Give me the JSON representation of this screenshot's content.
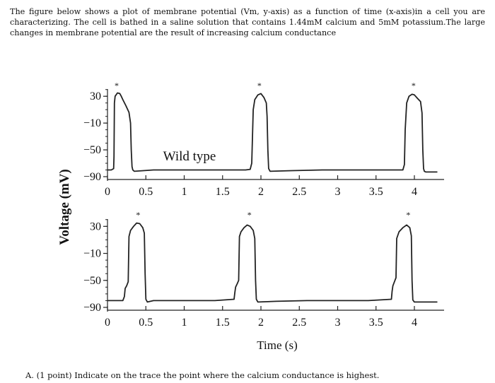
{
  "intro_text": "The figure below shows a plot of membrane potential (Vm, y-axis) as a function of time (x-axis)in a cell you are characterizing. The cell is bathed in a saline solution that contains 1.44mM calcium and 5mM potassium.The large changes in membrane potential are the result of increasing calcium conductance",
  "question_text": "A. (1 point) Indicate on the trace the point where the calcium conductance is highest.",
  "colors": {
    "trace": "#222222",
    "axis": "#222222",
    "text": "#111111"
  },
  "chart_data": [
    {
      "type": "line",
      "title": "",
      "annotation": "Wild type",
      "xlabel": "",
      "ylabel": "Voltage (mV)",
      "xlim": [
        0,
        4.3
      ],
      "ylim": [
        -90,
        45
      ],
      "x_ticks": [
        0,
        0.5,
        1,
        1.5,
        2,
        2.5,
        3,
        3.5,
        4
      ],
      "x_tick_labels": [
        "0",
        "0.5",
        "1",
        "1.5",
        "2",
        "2.5",
        "3",
        "3.5",
        "4"
      ],
      "y_ticks": [
        30,
        -10,
        -50,
        -90
      ],
      "y_tick_labels": [
        "30",
        "−10",
        "−50",
        "−90"
      ],
      "peak_marker": "*",
      "peak_markers": [
        {
          "x": 0.12,
          "y": 42
        },
        {
          "x": 1.98,
          "y": 42
        },
        {
          "x": 3.99,
          "y": 42
        }
      ],
      "series": [
        {
          "x": [
            0,
            0.05,
            0.08,
            0.085,
            0.09,
            0.1,
            0.13,
            0.16,
            0.18,
            0.2,
            0.24,
            0.28,
            0.3,
            0.31,
            0.32,
            0.33,
            0.35,
            0.6,
            1.0,
            1.4,
            1.8,
            1.86,
            1.88,
            1.9,
            1.92,
            1.96,
            2.0,
            2.04,
            2.07,
            2.08,
            2.09,
            2.1,
            2.12,
            2.4,
            2.8,
            3.2,
            3.6,
            3.85,
            3.87,
            3.88,
            3.9,
            3.93,
            3.97,
            4.0,
            4.04,
            4.08,
            4.1,
            4.11,
            4.12,
            4.13,
            4.15,
            4.3
          ],
          "y": [
            -80,
            -80,
            -78,
            -60,
            20,
            30,
            35,
            34,
            30,
            25,
            16,
            6,
            -10,
            -50,
            -75,
            -80,
            -82,
            -80,
            -80,
            -80,
            -80,
            -79,
            -70,
            10,
            25,
            32,
            34,
            28,
            20,
            0,
            -50,
            -78,
            -82,
            -81,
            -80,
            -80,
            -80,
            -80,
            -72,
            -20,
            20,
            30,
            33,
            32,
            27,
            22,
            5,
            -50,
            -78,
            -82,
            -83,
            -83
          ]
        }
      ]
    },
    {
      "type": "line",
      "title": "",
      "xlabel": "Time (s)",
      "ylabel": "Voltage (mV)",
      "xlim": [
        0,
        4.3
      ],
      "ylim": [
        -90,
        45
      ],
      "x_ticks": [
        0,
        0.5,
        1,
        1.5,
        2,
        2.5,
        3,
        3.5,
        4
      ],
      "x_tick_labels": [
        "0",
        "0.5",
        "1",
        "1.5",
        "2",
        "2.5",
        "3",
        "3.5",
        "4"
      ],
      "y_ticks": [
        30,
        -10,
        -50,
        -90
      ],
      "y_tick_labels": [
        "30",
        "−10",
        "−50",
        "−90"
      ],
      "peak_marker": "*",
      "peak_markers": [
        {
          "x": 0.4,
          "y": 43
        },
        {
          "x": 1.85,
          "y": 43
        },
        {
          "x": 3.92,
          "y": 43
        }
      ],
      "series": [
        {
          "x": [
            0,
            0.2,
            0.22,
            0.23,
            0.25,
            0.27,
            0.28,
            0.3,
            0.34,
            0.38,
            0.42,
            0.46,
            0.48,
            0.49,
            0.5,
            0.52,
            0.6,
            1.0,
            1.4,
            1.65,
            1.66,
            1.67,
            1.69,
            1.71,
            1.72,
            1.74,
            1.78,
            1.82,
            1.86,
            1.9,
            1.92,
            1.93,
            1.94,
            1.96,
            2.2,
            2.6,
            3.0,
            3.4,
            3.7,
            3.71,
            3.72,
            3.74,
            3.76,
            3.77,
            3.8,
            3.85,
            3.9,
            3.94,
            3.96,
            3.97,
            3.98,
            4.0,
            4.3
          ],
          "y": [
            -80,
            -80,
            -74,
            -62,
            -58,
            -52,
            15,
            24,
            30,
            35,
            34,
            28,
            20,
            -40,
            -78,
            -82,
            -80,
            -80,
            -80,
            -78,
            -68,
            -60,
            -55,
            -50,
            15,
            22,
            28,
            32,
            30,
            24,
            12,
            -50,
            -78,
            -82,
            -81,
            -80,
            -80,
            -80,
            -78,
            -66,
            -58,
            -52,
            -46,
            12,
            22,
            28,
            32,
            28,
            16,
            -50,
            -79,
            -82,
            -82
          ]
        }
      ]
    }
  ]
}
